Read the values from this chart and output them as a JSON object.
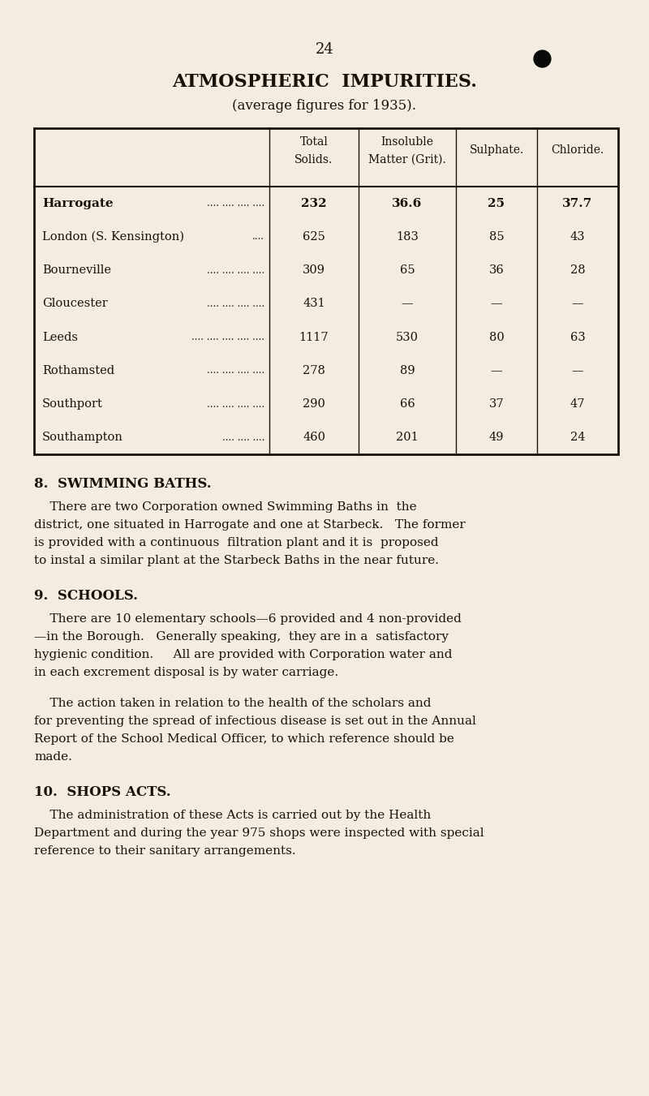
{
  "page_number": "24",
  "bg_color": "#f2ede0",
  "text_color": "#1a1208",
  "title": "ATMOSPHERIC  IMPURITIES.",
  "subtitle": "(average figures for 1935).",
  "table_headers_line1": [
    "",
    "Total",
    "Insoluble",
    "Sulphate.",
    "Chloride."
  ],
  "table_headers_line2": [
    "",
    "Solids.",
    "Matter (Grit).",
    "",
    ""
  ],
  "table_rows": [
    [
      "Harrogate",
      ".... .... .... ....",
      "232",
      "36.6",
      "25",
      "37.7",
      true
    ],
    [
      "London (S. Kensington)",
      "....",
      "625",
      "183",
      "85",
      "43",
      false
    ],
    [
      "Bourneville",
      ".... .... .... ....",
      "309",
      "65",
      "36",
      "28",
      false
    ],
    [
      "Gloucester",
      ".... .... .... ....",
      "431",
      "—",
      "—",
      "—",
      false
    ],
    [
      "Leeds",
      ".... .... .... .... ....",
      "1117",
      "530",
      "80",
      "63",
      false
    ],
    [
      "Rothamsted",
      ".... .... .... ....",
      "278",
      "89",
      "—",
      "—",
      false
    ],
    [
      "Southport",
      ".... .... .... ....",
      "290",
      "66",
      "37",
      "47",
      false
    ],
    [
      "Southampton",
      ".... .... ....",
      "460",
      "201",
      "49",
      "24",
      false
    ]
  ],
  "section8_title": "8.  SWIMMING BATHS.",
  "section8_lines": [
    "    There are two Corporation owned Swimming Baths in  the",
    "district, one situated in Harrogate and one at Starbeck.   The former",
    "is provided with a continuous  filtration plant and it is  proposed",
    "to instal a similar plant at the Starbeck Baths in the near future."
  ],
  "section9_title": "9.  SCHOOLS.",
  "section9_lines1": [
    "    There are 10 elementary schools—6 provided and 4 non-provided",
    "—in the Borough.   Generally speaking,  they are in a  satisfactory",
    "hygienic condition.     All are provided with Corporation water and",
    "in each excrement disposal is by water carriage."
  ],
  "section9_lines2": [
    "    The action taken in relation to the health of the scholars and",
    "for preventing the spread of infectious disease is set out in the Annual",
    "Report of the School Medical Officer, to which reference should be",
    "made."
  ],
  "section10_title": "10.  SHOPS ACTS.",
  "section10_lines": [
    "    The administration of these Acts is carried out by the Health",
    "Department and during the year 975 shops were inspected with special",
    "reference to their sanitary arrangements."
  ]
}
